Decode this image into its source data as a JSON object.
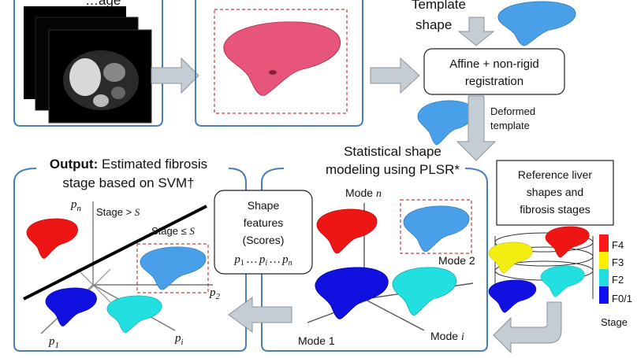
{
  "input": {
    "label_partial": "…age"
  },
  "template": {
    "label_line1": "Template",
    "label_line2": "shape"
  },
  "registration": {
    "line1": "Affine + non-rigid",
    "line2": "registration"
  },
  "deformed": {
    "line1": "Deformed",
    "line2": "template"
  },
  "ssm": {
    "line1": "Statistical shape",
    "line2": "modeling using PLSR*",
    "mode_n": "Mode",
    "mode_n_var": "n",
    "mode_2": "Mode 2",
    "mode_1": "Mode 1",
    "mode_i": "Mode",
    "mode_i_var": "i"
  },
  "reference": {
    "line1": "Reference liver",
    "line2": "shapes and",
    "line3": "fibrosis stages"
  },
  "legend": {
    "title": "Stage",
    "items": [
      {
        "label": "F4",
        "color": "#ff1a1a"
      },
      {
        "label": "F3",
        "color": "#ffee00"
      },
      {
        "label": "F2",
        "color": "#22dddd"
      },
      {
        "label": "F0/1",
        "color": "#1010ee"
      }
    ]
  },
  "features": {
    "line1": "Shape",
    "line2": "features",
    "line3": "(Scores)",
    "p": "p",
    "s1": "1",
    "si": "i",
    "sn": "n",
    "dots": "…"
  },
  "output": {
    "bold": "Output:",
    "line1_rest": " Estimated fibrosis",
    "line2": "stage based on SVM†",
    "stage_gt": "Stage > ",
    "stage_le": "Stage ≤ ",
    "S": "S",
    "pn_sub": "n",
    "p2_sub": "2",
    "p1_sub": "1",
    "pi_sub": "i",
    "p": "p"
  },
  "colors": {
    "frame": "#4a7fb5",
    "arrow": "#c4ccd4",
    "arrow_edge": "#8a939c",
    "pink_liver": "#e8557a",
    "blue_liver": "#4aa0e8",
    "red_liver": "#ee1515",
    "dark_blue_liver": "#1010e0",
    "cyan_liver": "#22e0e0",
    "yellow_liver": "#f2ee10",
    "dashed": "#c04040"
  }
}
